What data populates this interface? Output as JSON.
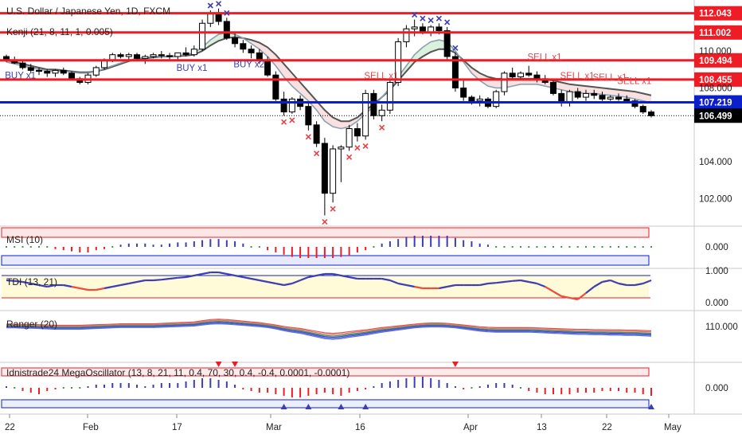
{
  "chart_data": {
    "type": "candlestick",
    "title": "U.S. Dollar / Japanese Yen, 1D, FXCM",
    "overlay_label": "Kenji (21, 8, 11, 1, 0.005)",
    "price_ticks": [
      "110.000",
      "108.000",
      "104.000",
      "102.000"
    ],
    "date_ticks": [
      "22",
      "Feb",
      "17",
      "Mar",
      "16",
      "Apr",
      "13",
      "22",
      "May"
    ],
    "current_price": "106.499",
    "level_lines": [
      {
        "label": "112.043",
        "price": 112.043,
        "color": "#ee1c24"
      },
      {
        "label": "111.002",
        "price": 111.002,
        "color": "#ee1c24"
      },
      {
        "label": "109.494",
        "price": 109.494,
        "color": "#ee1c24"
      },
      {
        "label": "108.455",
        "price": 108.455,
        "color": "#ee1c24"
      },
      {
        "label": "107.219",
        "price": 107.219,
        "color": "#0c1fcc"
      }
    ],
    "candles": [
      [
        109.7,
        109.8,
        109.4,
        109.5
      ],
      [
        109.5,
        109.7,
        109.3,
        109.35
      ],
      [
        109.35,
        109.5,
        109.0,
        109.1
      ],
      [
        109.1,
        109.3,
        108.8,
        108.95
      ],
      [
        108.95,
        109.1,
        108.7,
        108.9
      ],
      [
        108.9,
        109.0,
        108.6,
        108.8
      ],
      [
        108.8,
        109.0,
        108.6,
        108.95
      ],
      [
        108.95,
        109.1,
        108.7,
        108.8
      ],
      [
        108.8,
        108.9,
        108.4,
        108.5
      ],
      [
        108.5,
        108.6,
        108.2,
        108.3
      ],
      [
        108.3,
        108.8,
        108.2,
        108.7
      ],
      [
        108.7,
        109.2,
        108.6,
        109.1
      ],
      [
        109.1,
        109.6,
        109.0,
        109.5
      ],
      [
        109.5,
        109.9,
        109.4,
        109.8
      ],
      [
        109.8,
        109.9,
        109.6,
        109.7
      ],
      [
        109.7,
        109.9,
        109.5,
        109.8
      ],
      [
        109.8,
        109.9,
        109.5,
        109.6
      ],
      [
        109.6,
        109.8,
        109.3,
        109.7
      ],
      [
        109.7,
        109.9,
        109.6,
        109.8
      ],
      [
        109.8,
        110.0,
        109.6,
        109.75
      ],
      [
        109.75,
        109.9,
        109.5,
        109.7
      ],
      [
        109.7,
        109.9,
        109.5,
        109.9
      ],
      [
        109.9,
        110.2,
        109.7,
        109.8
      ],
      [
        109.8,
        110.3,
        109.7,
        110.1
      ],
      [
        110.1,
        111.7,
        110.0,
        111.5
      ],
      [
        111.5,
        112.2,
        111.3,
        112.0
      ],
      [
        112.0,
        112.3,
        111.4,
        111.6
      ],
      [
        111.6,
        111.8,
        110.6,
        110.7
      ],
      [
        110.7,
        111.0,
        110.2,
        110.4
      ],
      [
        110.4,
        110.6,
        109.9,
        110.1
      ],
      [
        110.1,
        110.3,
        109.6,
        109.9
      ],
      [
        109.9,
        110.1,
        109.3,
        109.5
      ],
      [
        109.5,
        109.7,
        108.6,
        108.7
      ],
      [
        108.7,
        108.9,
        107.3,
        107.4
      ],
      [
        107.4,
        107.8,
        106.5,
        106.7
      ],
      [
        106.7,
        107.5,
        106.6,
        107.4
      ],
      [
        107.4,
        107.6,
        106.8,
        107.0
      ],
      [
        107.0,
        107.2,
        105.7,
        106.0
      ],
      [
        106.0,
        106.2,
        104.8,
        105.0
      ],
      [
        105.0,
        105.3,
        101.1,
        102.3
      ],
      [
        102.3,
        104.9,
        101.8,
        104.7
      ],
      [
        104.7,
        104.9,
        102.9,
        104.8
      ],
      [
        104.8,
        106.0,
        104.6,
        105.8
      ],
      [
        105.8,
        106.1,
        105.1,
        105.4
      ],
      [
        105.4,
        107.9,
        105.2,
        107.7
      ],
      [
        107.7,
        107.9,
        106.3,
        106.5
      ],
      [
        106.5,
        107.1,
        106.2,
        106.8
      ],
      [
        106.8,
        108.5,
        106.6,
        108.3
      ],
      [
        108.3,
        110.7,
        108.1,
        110.5
      ],
      [
        110.5,
        111.4,
        110.2,
        111.2
      ],
      [
        111.2,
        111.7,
        110.8,
        111.3
      ],
      [
        111.3,
        111.5,
        110.9,
        111.0
      ],
      [
        111.0,
        111.4,
        110.8,
        111.3
      ],
      [
        111.3,
        111.5,
        110.9,
        111.1
      ],
      [
        111.1,
        111.3,
        109.5,
        109.7
      ],
      [
        109.7,
        109.9,
        107.8,
        108.0
      ],
      [
        108.0,
        108.4,
        107.3,
        107.5
      ],
      [
        107.5,
        107.6,
        107.1,
        107.3
      ],
      [
        107.3,
        107.6,
        107.0,
        107.4
      ],
      [
        107.4,
        107.5,
        106.9,
        107.0
      ],
      [
        107.0,
        107.9,
        106.9,
        107.8
      ],
      [
        107.8,
        108.9,
        107.6,
        108.8
      ],
      [
        108.8,
        109.1,
        108.5,
        108.6
      ],
      [
        108.6,
        108.9,
        108.5,
        108.8
      ],
      [
        108.8,
        109.2,
        108.6,
        108.7
      ],
      [
        108.7,
        108.9,
        108.3,
        108.5
      ],
      [
        108.5,
        108.7,
        108.2,
        108.3
      ],
      [
        108.3,
        108.4,
        107.6,
        107.7
      ],
      [
        107.7,
        107.9,
        107.0,
        107.2
      ],
      [
        107.2,
        107.9,
        107.0,
        107.8
      ],
      [
        107.8,
        108.0,
        107.4,
        107.5
      ],
      [
        107.5,
        107.9,
        107.3,
        107.7
      ],
      [
        107.7,
        107.9,
        107.4,
        107.6
      ],
      [
        107.6,
        107.8,
        107.3,
        107.4
      ],
      [
        107.4,
        107.6,
        107.3,
        107.5
      ],
      [
        107.5,
        107.7,
        107.3,
        107.4
      ],
      [
        107.4,
        107.6,
        107.2,
        107.3
      ],
      [
        107.3,
        107.4,
        106.9,
        107.0
      ],
      [
        107.0,
        107.1,
        106.6,
        106.7
      ],
      [
        106.7,
        106.8,
        106.4,
        106.5
      ]
    ],
    "kenji_lines": [
      {
        "name": "",
        "color": "#555555",
        "values": [
          109.5,
          109.4,
          109.3,
          109.2,
          109.1,
          109.0,
          109.0,
          108.95,
          108.9,
          108.85,
          108.85,
          108.9,
          109.0,
          109.15,
          109.3,
          109.45,
          109.55,
          109.6,
          109.65,
          109.7,
          109.7,
          109.72,
          109.75,
          109.8,
          110.0,
          110.3,
          110.55,
          110.7,
          110.75,
          110.7,
          110.6,
          110.45,
          110.2,
          109.8,
          109.3,
          108.8,
          108.3,
          107.8,
          107.3,
          106.8,
          106.4,
          106.2,
          106.2,
          106.4,
          106.8,
          107.1,
          107.5,
          107.9,
          108.4,
          108.9,
          109.4,
          109.7,
          109.95,
          110.1,
          110.1,
          109.9,
          109.5,
          109.1,
          108.8,
          108.6,
          108.5,
          108.5,
          108.5,
          108.5,
          108.5,
          108.5,
          108.45,
          108.4,
          108.3,
          108.2,
          108.15,
          108.1,
          108.05,
          108.0,
          107.95,
          107.9,
          107.85,
          107.8,
          107.7,
          107.6
        ]
      },
      {
        "name": "",
        "color": "#8aa0b0",
        "values": [
          109.4,
          109.3,
          109.2,
          109.1,
          109.0,
          108.95,
          108.9,
          108.9,
          108.85,
          108.8,
          108.8,
          108.9,
          109.05,
          109.2,
          109.35,
          109.5,
          109.6,
          109.65,
          109.7,
          109.72,
          109.72,
          109.75,
          109.8,
          109.9,
          110.2,
          110.6,
          110.9,
          111.0,
          110.9,
          110.7,
          110.4,
          110.1,
          109.7,
          109.2,
          108.6,
          108.1,
          107.7,
          107.3,
          106.8,
          106.2,
          105.9,
          105.8,
          105.9,
          106.2,
          106.6,
          107.0,
          107.5,
          108.0,
          108.6,
          109.2,
          109.8,
          110.2,
          110.5,
          110.6,
          110.5,
          110.0,
          109.4,
          108.8,
          108.4,
          108.1,
          108.0,
          108.0,
          108.1,
          108.2,
          108.2,
          108.2,
          108.1,
          108.0,
          107.9,
          107.8,
          107.75,
          107.7,
          107.7,
          107.65,
          107.6,
          107.55,
          107.5,
          107.4,
          107.3,
          107.2
        ]
      }
    ],
    "markers": [
      {
        "text": "BUY x1",
        "idx": 1,
        "pos": "below",
        "color": "#3d3db5"
      },
      {
        "text": "BUY x1",
        "idx": 22,
        "pos": "below",
        "color": "#3d3db5"
      },
      {
        "text": "BUY x2",
        "idx": 29,
        "pos": "below",
        "color": "#3d3db5"
      },
      {
        "text": "SELL x1",
        "idx": 45,
        "pos": "above",
        "color": "#e0464b"
      },
      {
        "text": "SELL x1",
        "idx": 65,
        "pos": "above",
        "color": "#e0464b"
      },
      {
        "text": "SELL x1",
        "idx": 69,
        "pos": "above",
        "color": "#e0464b"
      },
      {
        "text": "SELL x1",
        "idx": 73,
        "pos": "above",
        "color": "#e0464b"
      },
      {
        "text": "SELL x1",
        "idx": 76,
        "pos": "above",
        "color": "#e0464b"
      }
    ],
    "x_marks": [
      {
        "idx": 25,
        "pos": "above",
        "color": "#3d3db5"
      },
      {
        "idx": 26,
        "pos": "above",
        "color": "#3d3db5"
      },
      {
        "idx": 27,
        "pos": "above",
        "color": "#3d3db5"
      },
      {
        "idx": 50,
        "pos": "above",
        "color": "#3d3db5"
      },
      {
        "idx": 51,
        "pos": "above",
        "color": "#3d3db5"
      },
      {
        "idx": 52,
        "pos": "above",
        "color": "#3d3db5"
      },
      {
        "idx": 53,
        "pos": "above",
        "color": "#3d3db5"
      },
      {
        "idx": 54,
        "pos": "above",
        "color": "#3d3db5"
      },
      {
        "idx": 55,
        "pos": "above",
        "color": "#3d3db5"
      },
      {
        "idx": 34,
        "pos": "below",
        "color": "#e0464b"
      },
      {
        "idx": 35,
        "pos": "below",
        "color": "#e0464b"
      },
      {
        "idx": 37,
        "pos": "below",
        "color": "#e0464b"
      },
      {
        "idx": 38,
        "pos": "below",
        "color": "#e0464b"
      },
      {
        "idx": 39,
        "pos": "below",
        "color": "#e0464b"
      },
      {
        "idx": 40,
        "pos": "below",
        "color": "#e0464b"
      },
      {
        "idx": 42,
        "pos": "below",
        "color": "#e0464b"
      },
      {
        "idx": 43,
        "pos": "below",
        "color": "#e0464b"
      },
      {
        "idx": 44,
        "pos": "below",
        "color": "#e0464b"
      },
      {
        "idx": 46,
        "pos": "below",
        "color": "#e0464b"
      }
    ],
    "panes": [
      {
        "label": "MSI (10)",
        "ticks": [
          "0.000"
        ]
      },
      {
        "label": "TDI (13, 21)",
        "ticks": [
          "1.000",
          "0.000"
        ]
      },
      {
        "label": "Ranger (20)",
        "ticks": [
          "110.000"
        ]
      },
      {
        "label": "Idnistrade24 MegaOscillator (13, 8, 21, 11, 0.4, 70, 30, 0.4, -0.4, 0.0001, -0.0001)",
        "ticks": [
          "0.000"
        ]
      }
    ],
    "msi_values": [
      0.1,
      0.1,
      0.05,
      0,
      0,
      -0.1,
      -0.2,
      -0.3,
      -0.4,
      -0.5,
      -0.5,
      -0.3,
      -0.2,
      0,
      0.2,
      0.3,
      0.3,
      0.3,
      0.2,
      0.2,
      0.3,
      0.4,
      0.4,
      0.5,
      0.6,
      0.7,
      0.7,
      0.6,
      0.5,
      0.3,
      0.1,
      -0.1,
      -0.3,
      -0.5,
      -0.7,
      -0.9,
      -1.0,
      -1.0,
      -1.0,
      -1.0,
      -1.0,
      -0.9,
      -0.8,
      -0.5,
      -0.3,
      0,
      0.3,
      0.5,
      0.7,
      0.9,
      1.0,
      1.0,
      1.0,
      1.0,
      1.0,
      0.8,
      0.6,
      0.5,
      0.3,
      0.2,
      0.1,
      0.1,
      0.1,
      0.1,
      0,
      0,
      0,
      0.05,
      0.05,
      0.05,
      0.05,
      0.05,
      0.05,
      0.05,
      0.05,
      0.05,
      0,
      0,
      0,
      0
    ],
    "tdi_values": [
      0.7,
      0.68,
      0.65,
      0.6,
      0.55,
      0.5,
      0.55,
      0.55,
      0.5,
      0.45,
      0.4,
      0.4,
      0.45,
      0.5,
      0.55,
      0.6,
      0.65,
      0.7,
      0.7,
      0.72,
      0.75,
      0.78,
      0.8,
      0.85,
      0.9,
      0.95,
      0.95,
      0.9,
      0.85,
      0.8,
      0.75,
      0.7,
      0.65,
      0.6,
      0.55,
      0.6,
      0.7,
      0.8,
      0.85,
      0.9,
      0.9,
      0.85,
      0.8,
      0.75,
      0.75,
      0.75,
      0.75,
      0.7,
      0.6,
      0.55,
      0.5,
      0.45,
      0.45,
      0.45,
      0.5,
      0.55,
      0.55,
      0.55,
      0.55,
      0.6,
      0.62,
      0.65,
      0.68,
      0.7,
      0.65,
      0.6,
      0.5,
      0.35,
      0.2,
      0.15,
      0.1,
      0.3,
      0.5,
      0.65,
      0.7,
      0.6,
      0.55,
      0.55,
      0.6,
      0.7
    ],
    "ranger_values": [
      110.0,
      110.0,
      109.9,
      109.9,
      109.8,
      109.7,
      109.6,
      109.6,
      109.6,
      109.6,
      109.7,
      109.8,
      109.9,
      110.0,
      110.1,
      110.1,
      110.1,
      110.1,
      110.1,
      110.2,
      110.3,
      110.4,
      110.5,
      110.6,
      110.9,
      111.2,
      111.3,
      111.2,
      111.0,
      110.8,
      110.6,
      110.4,
      110.1,
      109.7,
      109.2,
      108.8,
      108.5,
      108.0,
      107.5,
      107.0,
      106.8,
      107.0,
      107.4,
      107.7,
      108.0,
      108.4,
      108.8,
      109.1,
      109.4,
      109.7,
      110.0,
      110.2,
      110.3,
      110.3,
      110.2,
      110.0,
      109.7,
      109.4,
      109.1,
      108.9,
      108.8,
      108.8,
      108.8,
      108.8,
      108.8,
      108.7,
      108.6,
      108.5,
      108.4,
      108.3,
      108.2,
      108.2,
      108.1,
      108.1,
      108.0,
      108.0,
      107.9,
      107.9,
      107.8,
      107.7
    ],
    "mega_values": [
      0.1,
      0.05,
      -0.2,
      -0.3,
      -0.4,
      -0.2,
      -0.1,
      0,
      0,
      0,
      0.1,
      0.2,
      0.2,
      0.3,
      0.3,
      0.3,
      0.2,
      0.1,
      0.2,
      0.3,
      0.3,
      0.3,
      0.4,
      0.5,
      0.6,
      0.6,
      0.5,
      0.4,
      0.2,
      -0.1,
      -0.2,
      -0.3,
      -0.3,
      -0.4,
      -0.5,
      -0.6,
      -0.6,
      -0.5,
      -0.4,
      -0.3,
      -0.4,
      -0.5,
      -0.3,
      -0.2,
      -0.1,
      0.1,
      0.3,
      0.4,
      0.5,
      0.6,
      0.7,
      0.7,
      0.6,
      0.5,
      0.3,
      0.1,
      -0.1,
      0,
      0.1,
      0.2,
      0.3,
      0.3,
      0.2,
      0,
      -0.2,
      -0.3,
      -0.4,
      -0.4,
      -0.4,
      -0.4,
      -0.3,
      -0.3,
      -0.3,
      -0.2,
      -0.2,
      -0.2,
      -0.3,
      -0.3,
      -0.4,
      -0.5
    ],
    "colors": {
      "up": "#ffffff",
      "down": "#000000",
      "red": "#ee1c24",
      "blue": "#0c1fcc",
      "pos_bar": "#3d3db5",
      "neg_bar": "#ee1c24"
    }
  }
}
